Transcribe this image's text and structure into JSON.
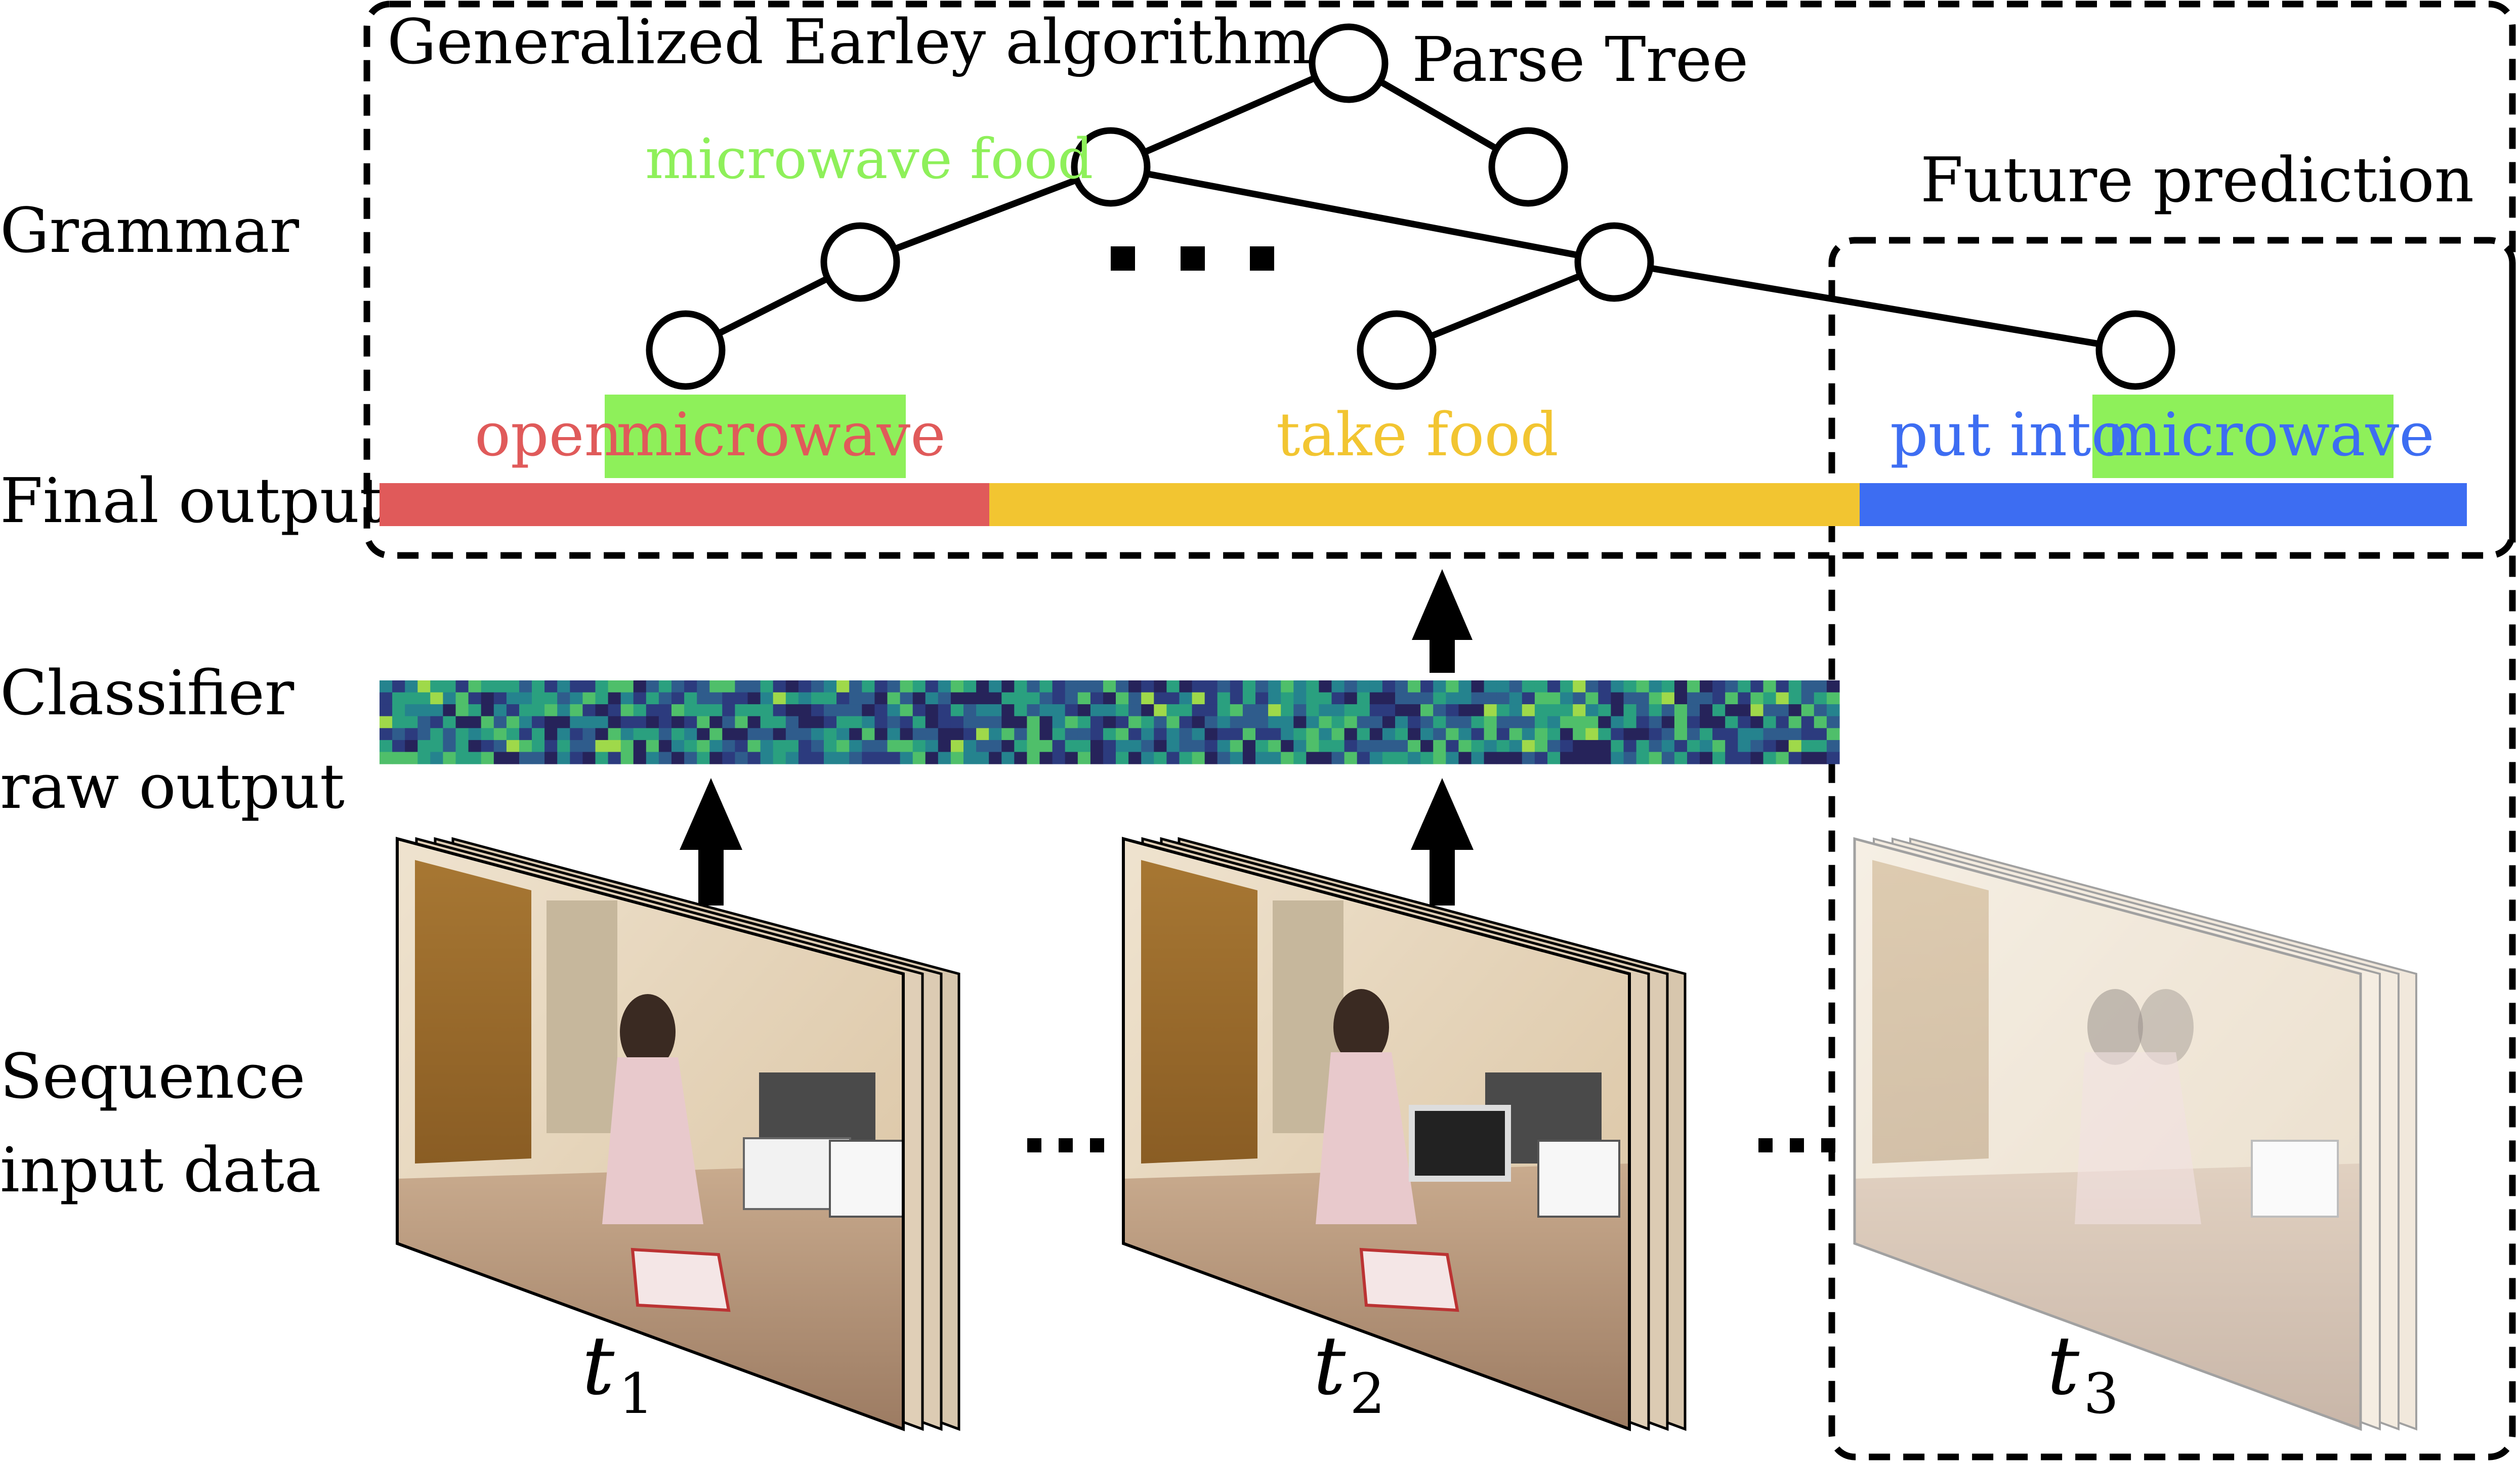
{
  "row_labels": {
    "grammar": "Grammar",
    "final_output": "Final output",
    "classifier_line1": "Classifier",
    "classifier_line2": "raw output",
    "sequence_line1": "Sequence",
    "sequence_line2": "input data"
  },
  "box_titles": {
    "earley": "Generalized Earley algorithm",
    "parse_tree": "Parse Tree",
    "future": "Future prediction"
  },
  "tree_labels": {
    "microwave_food": "microwave food",
    "ellipsis": "..."
  },
  "actions": {
    "open_verb": "open",
    "open_object": "microwave",
    "take_food": "take food",
    "put_verb": "put into",
    "put_object": "microwave"
  },
  "time_labels": {
    "t1_base": "t",
    "t1_sub": "1",
    "t2_base": "t",
    "t2_sub": "2",
    "t3_base": "t",
    "t3_sub": "3"
  },
  "sequence_ellipsis": "...",
  "colors": {
    "open": "#e05a5a",
    "take_food": "#f2c531",
    "put_into": "#3d6df2",
    "microwave_food_label": "#8ef05a",
    "object_highlight": "#8ef05a",
    "line": "#000000"
  }
}
